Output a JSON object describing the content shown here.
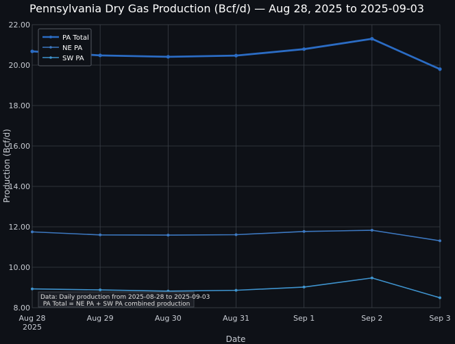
{
  "chart_data": {
    "type": "line",
    "title": "Pennsylvania Dry Gas Production (Bcf/d) — Aug 28, 2025 to 2025-09-03",
    "xlabel": "Date",
    "ylabel": "Production (Bcf/d)",
    "ylim": [
      8.0,
      22.0
    ],
    "yticks": [
      "8.00",
      "10.00",
      "12.00",
      "14.00",
      "16.00",
      "18.00",
      "20.00",
      "22.00"
    ],
    "ytick_values": [
      8,
      10,
      12,
      14,
      16,
      18,
      20,
      22
    ],
    "categories": [
      "Aug 28",
      "Aug 29",
      "Aug 30",
      "Aug 31",
      "Sep 1",
      "Sep 2",
      "Sep 3"
    ],
    "x_year_label": "2025",
    "grid": true,
    "legend_position": "top-left",
    "series": [
      {
        "name": "PA Total",
        "color": "#2b6cc4",
        "values": [
          20.68,
          20.48,
          20.41,
          20.47,
          20.79,
          21.3,
          19.8
        ]
      },
      {
        "name": "NE PA",
        "color": "#3d79c2",
        "values": [
          11.75,
          11.6,
          11.59,
          11.61,
          11.77,
          11.83,
          11.31
        ]
      },
      {
        "name": "SW PA",
        "color": "#3f94cf",
        "values": [
          8.93,
          8.88,
          8.82,
          8.86,
          9.02,
          9.47,
          8.49
        ]
      }
    ],
    "annotation": {
      "line1": "Data: Daily production from 2025-08-28 to 2025-09-03",
      "line2": "PA Total = NE PA + SW PA combined production"
    }
  }
}
